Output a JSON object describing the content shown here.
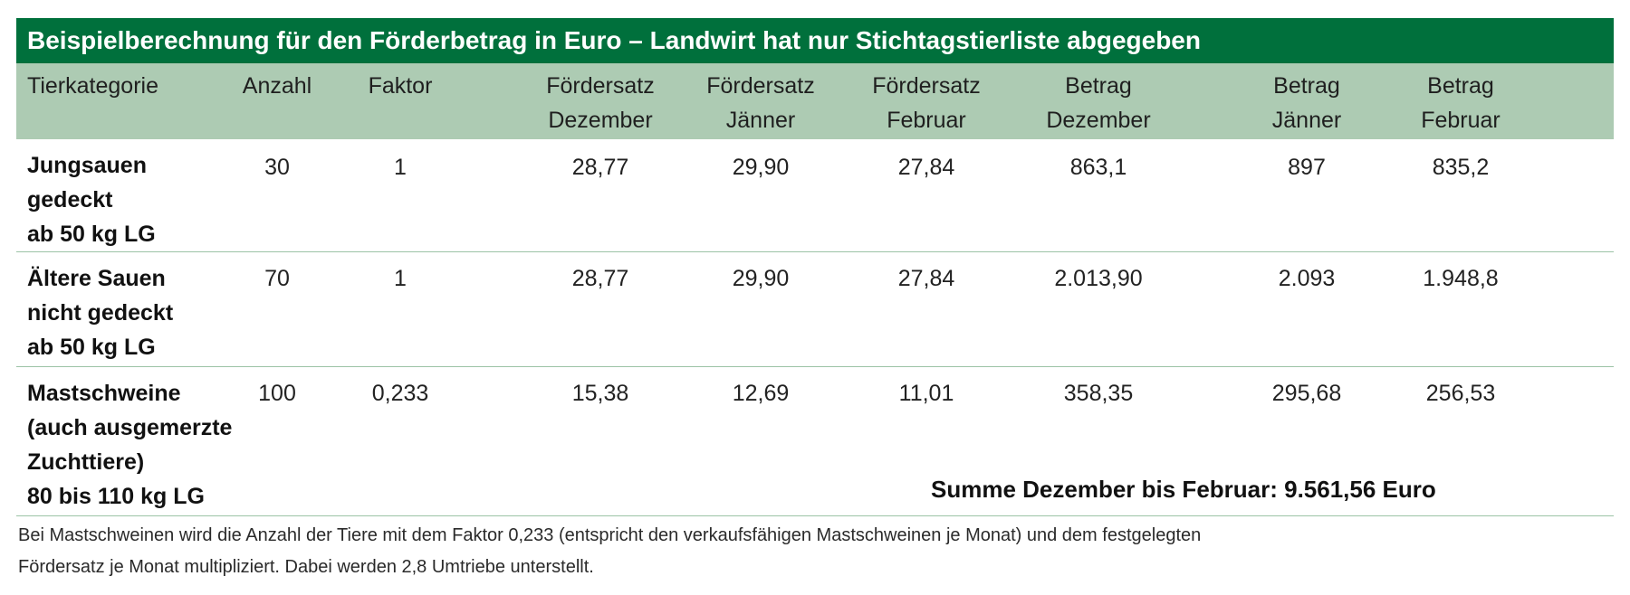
{
  "title": "Beispielberechnung für den Förderbetrag in Euro – Landwirt hat nur Stichtagstierliste abgegeben",
  "columns": [
    {
      "line1": "Tierkategorie",
      "line2": ""
    },
    {
      "line1": "Anzahl",
      "line2": ""
    },
    {
      "line1": "Faktor",
      "line2": ""
    },
    {
      "line1": "Fördersatz",
      "line2": "Dezember"
    },
    {
      "line1": "Fördersatz",
      "line2": "Jänner"
    },
    {
      "line1": "Fördersatz",
      "line2": "Februar"
    },
    {
      "line1": "Betrag",
      "line2": "Dezember"
    },
    {
      "line1": "Betrag",
      "line2": "Jänner"
    },
    {
      "line1": "Betrag",
      "line2": "Februar"
    }
  ],
  "rows": [
    {
      "category": [
        "Jungsauen",
        "gedeckt",
        "ab 50 kg LG"
      ],
      "anzahl": "30",
      "faktor": "1",
      "satz_dez": "28,77",
      "satz_jan": "29,90",
      "satz_feb": "27,84",
      "betrag_dez": "863,1",
      "betrag_jan": "897",
      "betrag_feb": "835,2"
    },
    {
      "category": [
        "Ältere Sauen",
        "nicht gedeckt",
        "ab 50 kg LG"
      ],
      "anzahl": "70",
      "faktor": "1",
      "satz_dez": "28,77",
      "satz_jan": "29,90",
      "satz_feb": "27,84",
      "betrag_dez": "2.013,90",
      "betrag_jan": "2.093",
      "betrag_feb": "1.948,8"
    },
    {
      "category": [
        "Mastschweine",
        "(auch ausgemerzte",
        "Zuchttiere)",
        "80 bis 110 kg LG"
      ],
      "anzahl": "100",
      "faktor": "0,233",
      "satz_dez": "15,38",
      "satz_jan": "12,69",
      "satz_feb": "11,01",
      "betrag_dez": "358,35",
      "betrag_jan": "295,68",
      "betrag_feb": "256,53"
    }
  ],
  "sum_text": "Summe Dezember bis Februar: 9.561,56 Euro",
  "footnote": [
    "Bei Mastschweinen wird die Anzahl der Tiere mit dem Faktor 0,233 (entspricht den verkaufsfähigen Mastschweinen je Monat) und dem festgelegten",
    "Fördersatz je Monat multipliziert. Dabei werden 2,8 Umtriebe unterstellt."
  ]
}
